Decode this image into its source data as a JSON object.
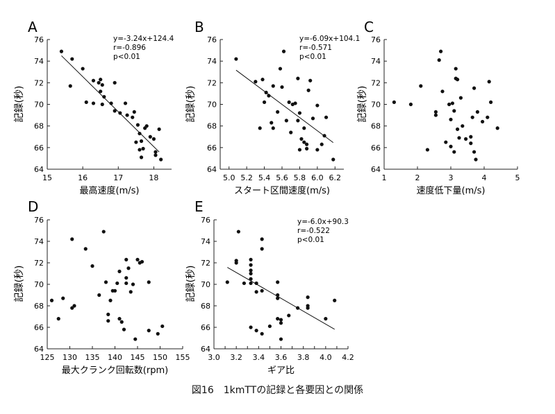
{
  "caption": "図16　1kmTTの記録と各要因との関係",
  "chart_data": [
    {
      "panel": "A",
      "type": "scatter",
      "xlabel": "最高速度(m/s)",
      "ylabel": "記録(秒)",
      "xlim": [
        15,
        18.5
      ],
      "ylim": [
        64,
        76
      ],
      "xticks": [
        15,
        16,
        17,
        18
      ],
      "yticks": [
        64,
        66,
        68,
        70,
        72,
        74,
        76
      ],
      "annotation": [
        "y=-3.24x+124.4",
        "r=-0.896",
        "p<0.01"
      ],
      "regression": {
        "slope": -3.24,
        "intercept": 124.4,
        "x_from": 15.4,
        "x_to": 18.15
      },
      "points": [
        [
          15.4,
          74.9
        ],
        [
          15.7,
          74.2
        ],
        [
          15.65,
          71.7
        ],
        [
          16.0,
          73.3
        ],
        [
          16.1,
          70.2
        ],
        [
          16.3,
          72.2
        ],
        [
          16.3,
          70.1
        ],
        [
          16.45,
          72.0
        ],
        [
          16.5,
          72.3
        ],
        [
          16.5,
          71.2
        ],
        [
          16.55,
          71.8
        ],
        [
          16.55,
          70.0
        ],
        [
          16.6,
          70.7
        ],
        [
          16.8,
          70.1
        ],
        [
          16.9,
          69.4
        ],
        [
          16.9,
          72.0
        ],
        [
          17.05,
          69.2
        ],
        [
          17.2,
          70.1
        ],
        [
          17.25,
          69.0
        ],
        [
          17.4,
          68.8
        ],
        [
          17.45,
          69.3
        ],
        [
          17.5,
          66.5
        ],
        [
          17.55,
          68.1
        ],
        [
          17.6,
          67.3
        ],
        [
          17.65,
          66.6
        ],
        [
          17.7,
          65.9
        ],
        [
          17.75,
          67.8
        ],
        [
          17.6,
          65.8
        ],
        [
          17.65,
          65.1
        ],
        [
          17.8,
          68.0
        ],
        [
          17.9,
          67.0
        ],
        [
          18.0,
          66.8
        ],
        [
          18.05,
          65.6
        ],
        [
          18.15,
          67.7
        ],
        [
          18.2,
          64.9
        ],
        [
          18.05,
          65.3
        ]
      ]
    },
    {
      "panel": "B",
      "type": "scatter",
      "xlabel": "スタート区間速度(m/s)",
      "ylabel": "記録(秒)",
      "xlim": [
        4.9,
        6.3
      ],
      "ylim": [
        64,
        76
      ],
      "xticks": [
        5.0,
        5.2,
        5.4,
        5.6,
        5.8,
        6.0,
        6.2
      ],
      "yticks": [
        64,
        66,
        68,
        70,
        72,
        74,
        76
      ],
      "annotation": [
        "y=-6.09x+104.1",
        "r=-0.571",
        "p<0.01"
      ],
      "regression": {
        "slope": -6.09,
        "intercept": 104.1,
        "x_from": 5.08,
        "x_to": 6.18
      },
      "points": [
        [
          5.08,
          74.2
        ],
        [
          5.3,
          72.1
        ],
        [
          5.38,
          72.3
        ],
        [
          5.35,
          67.8
        ],
        [
          5.4,
          70.2
        ],
        [
          5.42,
          71.1
        ],
        [
          5.45,
          70.8
        ],
        [
          5.48,
          68.3
        ],
        [
          5.5,
          67.8
        ],
        [
          5.5,
          71.7
        ],
        [
          5.55,
          69.3
        ],
        [
          5.58,
          73.3
        ],
        [
          5.6,
          71.6
        ],
        [
          5.62,
          74.9
        ],
        [
          5.65,
          68.5
        ],
        [
          5.68,
          70.2
        ],
        [
          5.72,
          70.0
        ],
        [
          5.75,
          70.1
        ],
        [
          5.78,
          72.4
        ],
        [
          5.78,
          68.5
        ],
        [
          5.8,
          69.2
        ],
        [
          5.82,
          66.8
        ],
        [
          5.8,
          65.8
        ],
        [
          5.85,
          67.8
        ],
        [
          5.85,
          66.5
        ],
        [
          5.88,
          66.3
        ],
        [
          5.88,
          65.9
        ],
        [
          5.9,
          71.3
        ],
        [
          5.92,
          72.2
        ],
        [
          5.95,
          68.7
        ],
        [
          6.0,
          69.9
        ],
        [
          6.0,
          65.8
        ],
        [
          6.05,
          66.3
        ],
        [
          6.08,
          67.1
        ],
        [
          6.1,
          68.8
        ],
        [
          6.18,
          64.9
        ],
        [
          5.7,
          67.4
        ]
      ]
    },
    {
      "panel": "C",
      "type": "scatter",
      "xlabel": "速度低下量(m/s)",
      "ylabel": "記録(秒)",
      "xlim": [
        1,
        5
      ],
      "ylim": [
        64,
        76
      ],
      "xticks": [
        1,
        2,
        3,
        4,
        5
      ],
      "yticks": [
        64,
        66,
        68,
        70,
        72,
        74,
        76
      ],
      "annotation": [],
      "points": [
        [
          1.3,
          70.2
        ],
        [
          1.8,
          70.0
        ],
        [
          2.1,
          71.7
        ],
        [
          2.3,
          65.8
        ],
        [
          2.55,
          69.3
        ],
        [
          2.55,
          69.0
        ],
        [
          2.65,
          74.1
        ],
        [
          2.7,
          74.9
        ],
        [
          2.75,
          71.2
        ],
        [
          2.85,
          66.5
        ],
        [
          2.95,
          70.0
        ],
        [
          3.0,
          68.6
        ],
        [
          3.0,
          66.1
        ],
        [
          3.05,
          70.1
        ],
        [
          3.1,
          69.4
        ],
        [
          3.1,
          65.6
        ],
        [
          3.15,
          73.3
        ],
        [
          3.15,
          72.4
        ],
        [
          3.2,
          72.3
        ],
        [
          3.2,
          67.7
        ],
        [
          3.25,
          66.9
        ],
        [
          3.3,
          70.6
        ],
        [
          3.35,
          68.0
        ],
        [
          3.45,
          66.8
        ],
        [
          3.6,
          66.4
        ],
        [
          3.6,
          67.0
        ],
        [
          3.65,
          68.8
        ],
        [
          3.7,
          71.5
        ],
        [
          3.7,
          65.6
        ],
        [
          3.75,
          64.9
        ],
        [
          3.8,
          69.3
        ],
        [
          3.95,
          68.4
        ],
        [
          4.1,
          68.8
        ],
        [
          4.15,
          72.1
        ],
        [
          4.2,
          70.2
        ],
        [
          4.4,
          67.8
        ]
      ]
    },
    {
      "panel": "D",
      "type": "scatter",
      "xlabel": "最大クランク回転数(rpm)",
      "ylabel": "記録(秒)",
      "xlim": [
        125,
        155
      ],
      "ylim": [
        64,
        76
      ],
      "xticks": [
        125,
        130,
        135,
        140,
        145,
        150,
        155
      ],
      "yticks": [
        64,
        66,
        68,
        70,
        72,
        74,
        76
      ],
      "annotation": [],
      "points": [
        [
          126,
          68.5
        ],
        [
          127.5,
          66.8
        ],
        [
          128.5,
          68.7
        ],
        [
          130.5,
          67.8
        ],
        [
          131,
          68.0
        ],
        [
          130.5,
          74.2
        ],
        [
          133.5,
          73.3
        ],
        [
          135,
          71.7
        ],
        [
          136.5,
          69.0
        ],
        [
          137.5,
          74.9
        ],
        [
          138,
          70.2
        ],
        [
          138.5,
          66.6
        ],
        [
          138.5,
          67.2
        ],
        [
          139,
          68.5
        ],
        [
          139.5,
          69.4
        ],
        [
          140,
          69.4
        ],
        [
          140.5,
          70.1
        ],
        [
          141,
          71.2
        ],
        [
          141,
          66.8
        ],
        [
          141.5,
          66.5
        ],
        [
          142,
          65.8
        ],
        [
          142.5,
          72.3
        ],
        [
          142.5,
          70.6
        ],
        [
          143,
          71.5
        ],
        [
          143.5,
          69.3
        ],
        [
          144,
          70.0
        ],
        [
          144.5,
          64.9
        ],
        [
          145,
          72.3
        ],
        [
          145.5,
          72.0
        ],
        [
          146,
          72.1
        ],
        [
          147.5,
          70.2
        ],
        [
          147.5,
          65.7
        ],
        [
          149.5,
          65.4
        ],
        [
          150.5,
          66.1
        ],
        [
          142.5,
          70.1
        ]
      ]
    },
    {
      "panel": "E",
      "type": "scatter",
      "xlabel": "ギア比",
      "ylabel": "記録(秒)",
      "xlim": [
        3.0,
        4.2
      ],
      "ylim": [
        64,
        76
      ],
      "xticks": [
        3.0,
        3.1,
        3.2,
        3.3,
        3.4,
        3.5,
        3.6,
        3.7,
        3.8,
        3.9,
        4.0,
        4.1,
        4.2
      ],
      "xticklabels": [
        "3.0",
        "",
        "3.2",
        "",
        "3.4",
        "",
        "3.6",
        "",
        "3.8",
        "",
        "4.0",
        "",
        "4.2"
      ],
      "yticks": [
        64,
        66,
        68,
        70,
        72,
        74,
        76
      ],
      "annotation": [
        "y=-6.0x+90.3",
        "r=-0.522",
        "p<0.01"
      ],
      "regression": {
        "slope": -6.0,
        "intercept": 90.3,
        "x_from": 3.12,
        "x_to": 4.08
      },
      "points": [
        [
          3.12,
          70.2
        ],
        [
          3.2,
          72.0
        ],
        [
          3.2,
          72.2
        ],
        [
          3.22,
          74.9
        ],
        [
          3.27,
          70.1
        ],
        [
          3.33,
          72.3
        ],
        [
          3.33,
          71.8
        ],
        [
          3.33,
          71.3
        ],
        [
          3.33,
          71.0
        ],
        [
          3.33,
          70.5
        ],
        [
          3.33,
          70.1
        ],
        [
          3.33,
          66.0
        ],
        [
          3.38,
          70.1
        ],
        [
          3.38,
          69.3
        ],
        [
          3.38,
          65.7
        ],
        [
          3.43,
          74.2
        ],
        [
          3.43,
          73.3
        ],
        [
          3.43,
          69.4
        ],
        [
          3.43,
          65.4
        ],
        [
          3.5,
          66.1
        ],
        [
          3.57,
          70.2
        ],
        [
          3.57,
          69.0
        ],
        [
          3.57,
          68.7
        ],
        [
          3.57,
          66.8
        ],
        [
          3.6,
          64.9
        ],
        [
          3.6,
          66.4
        ],
        [
          3.6,
          66.7
        ],
        [
          3.67,
          67.1
        ],
        [
          3.75,
          67.8
        ],
        [
          3.84,
          67.8
        ],
        [
          3.84,
          68.0
        ],
        [
          3.84,
          68.8
        ],
        [
          4.0,
          66.8
        ],
        [
          4.08,
          68.5
        ]
      ]
    }
  ]
}
